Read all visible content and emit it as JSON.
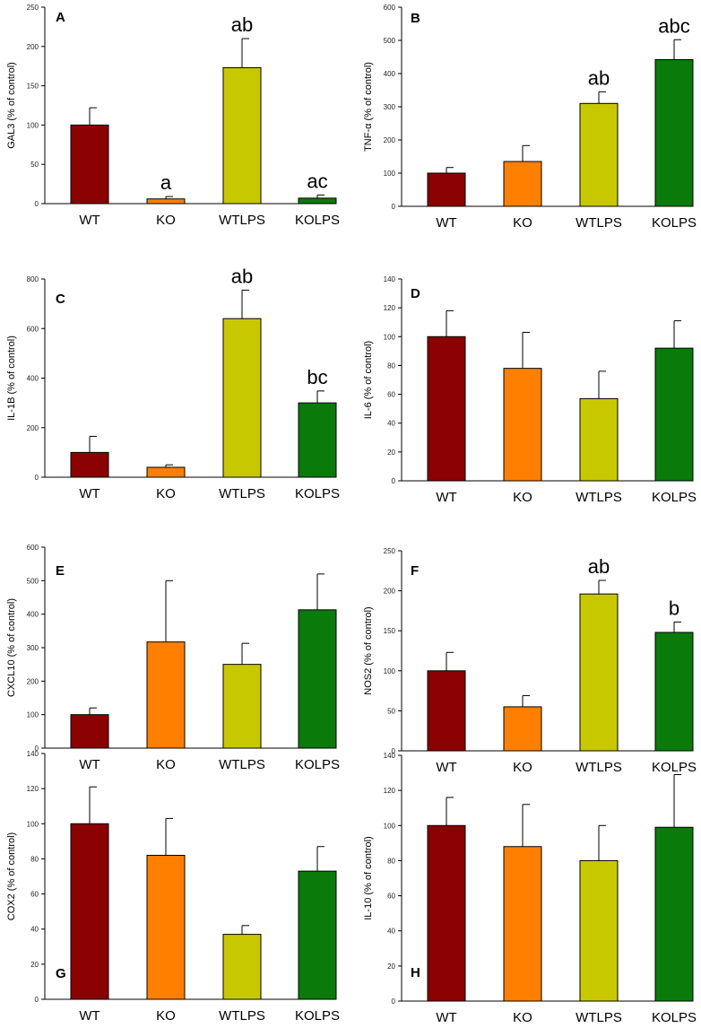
{
  "colors": {
    "WT": "#8b0000",
    "KO": "#ff8000",
    "WTLPS": "#c8c800",
    "KOLPS": "#0a7a0a"
  },
  "chart_data": [
    {
      "type": "bar",
      "panel": "A",
      "ylabel": "GAL3 (% of control)",
      "ylim": [
        0,
        250
      ],
      "yticks": [
        0,
        50,
        100,
        150,
        200,
        250
      ],
      "categories": [
        "WT",
        "KO",
        "WTLPS",
        "KOLPS"
      ],
      "values": [
        100,
        6,
        173,
        7
      ],
      "errors": [
        22,
        3,
        37,
        4
      ],
      "significance": [
        "",
        "a",
        "ab",
        "ac"
      ]
    },
    {
      "type": "bar",
      "panel": "B",
      "ylabel": "TNF-α (% of control)",
      "ylim": [
        0,
        600
      ],
      "yticks": [
        0,
        100,
        200,
        300,
        400,
        500,
        600
      ],
      "categories": [
        "WT",
        "KO",
        "WTLPS",
        "KOLPS"
      ],
      "values": [
        100,
        135,
        310,
        442
      ],
      "errors": [
        17,
        48,
        35,
        60
      ],
      "significance": [
        "",
        "",
        "ab",
        "abc"
      ]
    },
    {
      "type": "bar",
      "panel": "C",
      "ylabel": "IL-1B (% of control)",
      "ylim": [
        0,
        800
      ],
      "yticks": [
        0,
        200,
        400,
        600,
        800
      ],
      "categories": [
        "WT",
        "KO",
        "WTLPS",
        "KOLPS"
      ],
      "values": [
        100,
        40,
        640,
        300
      ],
      "errors": [
        65,
        10,
        115,
        48
      ],
      "significance": [
        "",
        "",
        "ab",
        "bc"
      ]
    },
    {
      "type": "bar",
      "panel": "D",
      "ylabel": "IL-6 (% of control)",
      "ylim": [
        0,
        140
      ],
      "yticks": [
        0,
        20,
        40,
        60,
        80,
        100,
        120,
        140
      ],
      "categories": [
        "WT",
        "KO",
        "WTLPS",
        "KOLPS"
      ],
      "values": [
        100,
        78,
        57,
        92
      ],
      "errors": [
        18,
        25,
        19,
        19
      ],
      "significance": [
        "",
        "",
        "",
        ""
      ]
    },
    {
      "type": "bar",
      "panel": "E",
      "ylabel": "CXCL10 (% of control)",
      "ylim": [
        0,
        600
      ],
      "yticks": [
        0,
        100,
        200,
        300,
        400,
        500,
        600
      ],
      "categories": [
        "WT",
        "KO",
        "WTLPS",
        "KOLPS"
      ],
      "values": [
        100,
        317,
        250,
        413
      ],
      "errors": [
        20,
        183,
        63,
        107
      ],
      "significance": [
        "",
        "",
        "",
        ""
      ]
    },
    {
      "type": "bar",
      "panel": "F",
      "ylabel": "NOS2 (% of control)",
      "ylim": [
        0,
        250
      ],
      "yticks": [
        0,
        50,
        100,
        150,
        200,
        250
      ],
      "categories": [
        "WT",
        "KO",
        "WTLPS",
        "KOLPS"
      ],
      "values": [
        100,
        55,
        196,
        148
      ],
      "errors": [
        23,
        14,
        17,
        13
      ],
      "significance": [
        "",
        "",
        "ab",
        "b"
      ]
    },
    {
      "type": "bar",
      "panel": "G",
      "ylabel": "COX2 (% of control)",
      "ylim": [
        0,
        140
      ],
      "yticks": [
        0,
        20,
        40,
        60,
        80,
        100,
        120,
        140
      ],
      "categories": [
        "WT",
        "KO",
        "WTLPS",
        "KOLPS"
      ],
      "values": [
        100,
        82,
        37,
        73
      ],
      "errors": [
        21,
        21,
        5,
        14
      ],
      "significance": [
        "",
        "",
        "",
        ""
      ]
    },
    {
      "type": "bar",
      "panel": "H",
      "ylabel": "IL-10 (% of control)",
      "ylim": [
        0,
        140
      ],
      "yticks": [
        0,
        20,
        40,
        60,
        80,
        100,
        120,
        140
      ],
      "categories": [
        "WT",
        "KO",
        "WTLPS",
        "KOLPS"
      ],
      "values": [
        100,
        88,
        80,
        99
      ],
      "errors": [
        16,
        24,
        20,
        30
      ],
      "significance": [
        "",
        "",
        "",
        ""
      ]
    }
  ]
}
